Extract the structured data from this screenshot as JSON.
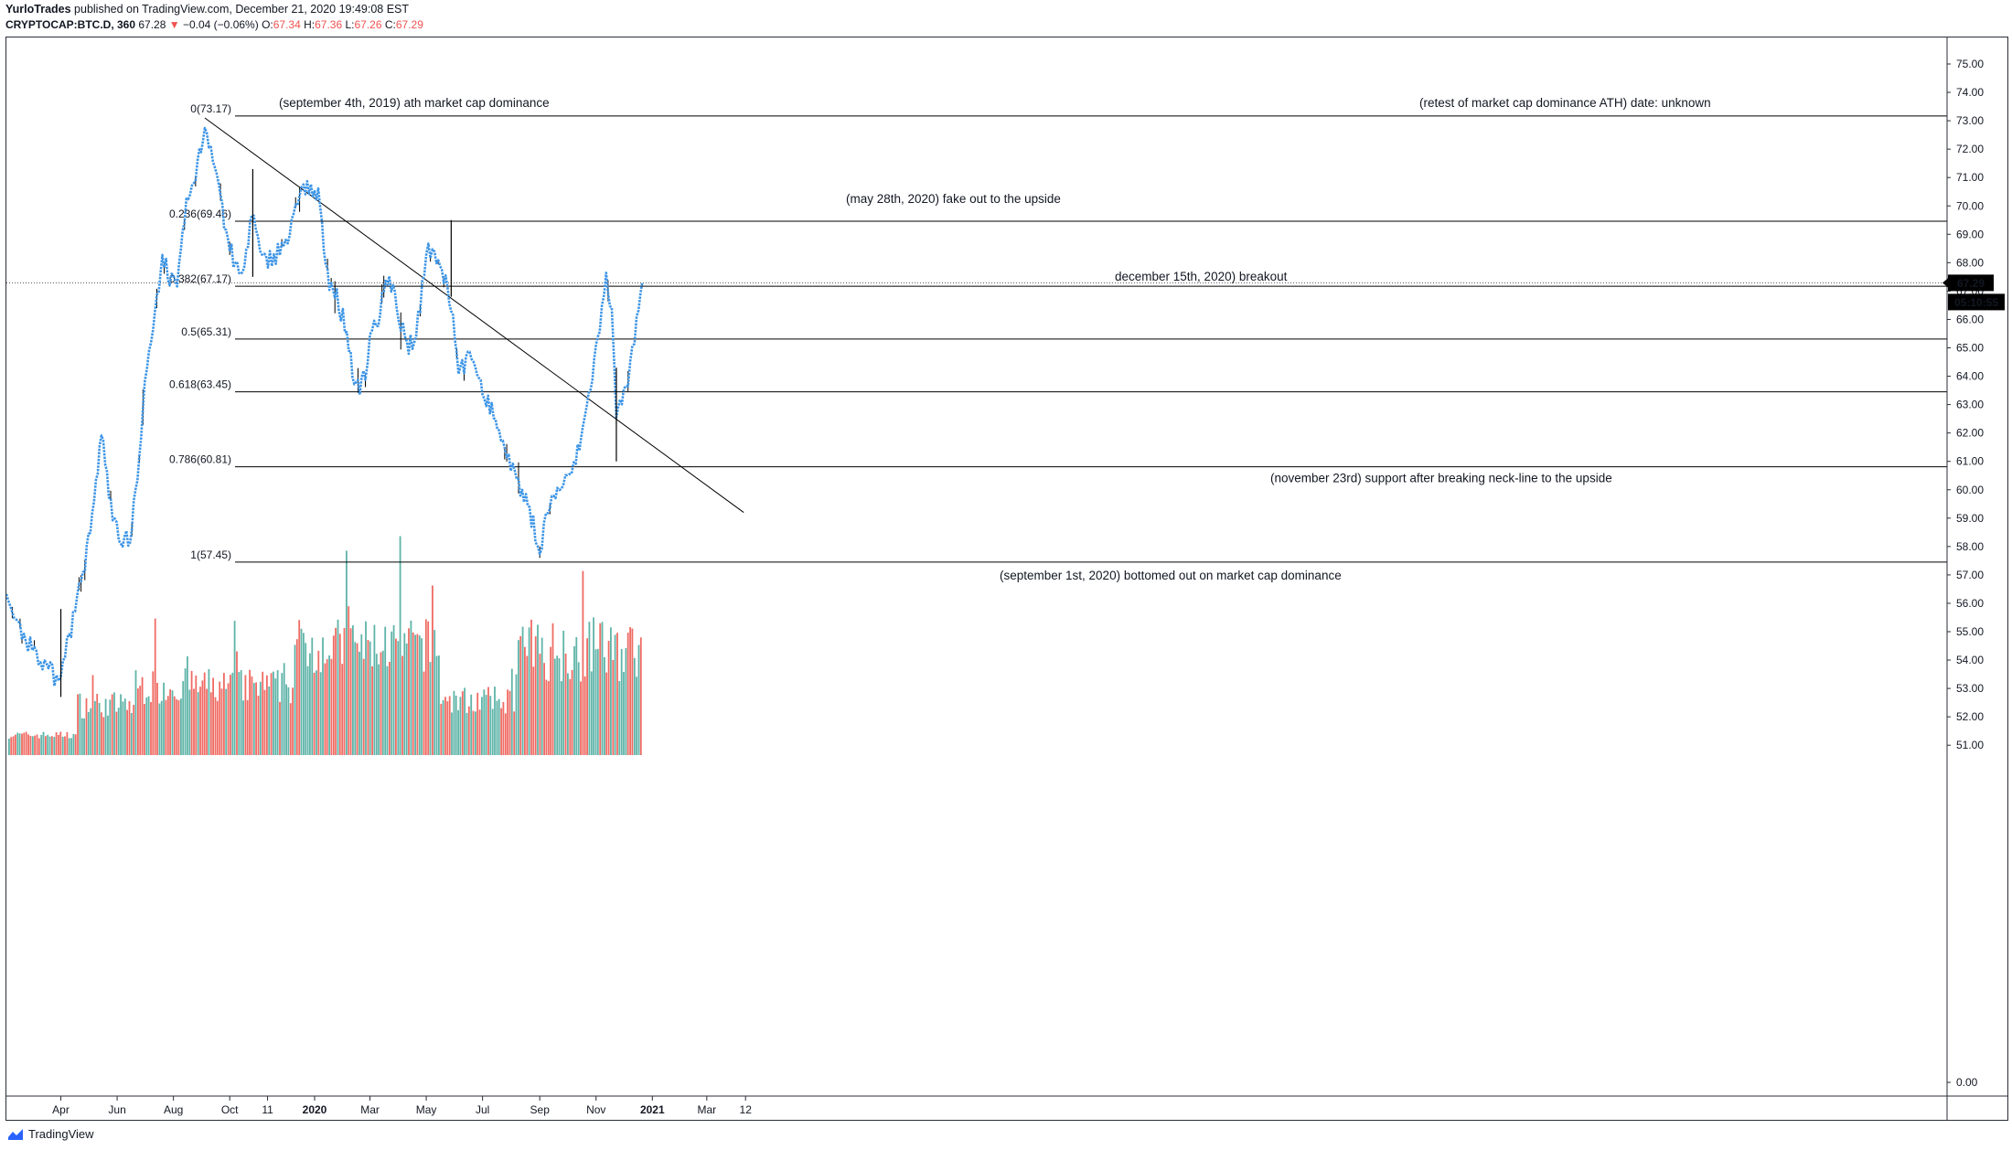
{
  "header": {
    "author": "YurloTrades",
    "published": "published on TradingView.com, December 21, 2020 19:49:08 EST",
    "symbol": "CRYPTOCAP:BTC.D, 360",
    "last": "67.28",
    "arrow": "▼",
    "change": "−0.04 (−0.06%)",
    "o_label": "O:",
    "o_value": "67.34",
    "h_label": "H:",
    "h_value": "67.36",
    "l_label": "L:",
    "l_value": "67.26",
    "c_label": "C:",
    "c_value": "67.29"
  },
  "footer": {
    "brand": "TradingView"
  },
  "price_badge": "67.29",
  "countdown_badge": "05:10:55",
  "colors": {
    "candle": "#3d95e6",
    "wick": "#000000",
    "vol_up": "#5fb4a8",
    "vol_down": "#ef6b64",
    "badge": "#000000",
    "line": "#000000"
  },
  "annotations": {
    "ath": "(september 4th, 2019) ath market cap dominance",
    "retest": "(retest of market cap dominance ATH) date: unknown",
    "fakeout": "(may 28th, 2020) fake out to the upside",
    "breakout": "december 15th, 2020) breakout",
    "support": "(november 23rd) support after breaking neck-line to the upside",
    "bottom": "(september 1st, 2020) bottomed out on market cap dominance"
  },
  "chart_data": {
    "type": "line",
    "title": "",
    "xlabel": "",
    "ylabel": "",
    "ylim": [
      0,
      75.5
    ],
    "y_axis_scale": "broken: 51.00 down to 0.00 compressed at bottom",
    "y_ticks": [
      "75.00",
      "74.00",
      "73.00",
      "72.00",
      "71.00",
      "70.00",
      "69.00",
      "68.00",
      "67.00",
      "66.00",
      "65.00",
      "64.00",
      "63.00",
      "62.00",
      "61.00",
      "60.00",
      "59.00",
      "58.00",
      "57.00",
      "56.00",
      "55.00",
      "54.00",
      "53.00",
      "52.00",
      "51.00",
      "0.00"
    ],
    "x_ticks": [
      "Apr",
      "Jun",
      "Aug",
      "Oct",
      "11",
      "2020",
      "Mar",
      "May",
      "Jul",
      "Sep",
      "Nov",
      "2021",
      "Mar",
      "12"
    ],
    "fib_levels": [
      {
        "label": "0(73.17)",
        "value": 73.17
      },
      {
        "label": "0.236(69.46)",
        "value": 69.46
      },
      {
        "label": "0.382(67.17)",
        "value": 67.17
      },
      {
        "label": "0.5(65.31)",
        "value": 65.31
      },
      {
        "label": "0.618(63.45)",
        "value": 63.45
      },
      {
        "label": "0.786(60.81)",
        "value": 60.81
      },
      {
        "label": "1(57.45)",
        "value": 57.45
      }
    ],
    "trendline": {
      "from": [
        "2019-09-04",
        73.1
      ],
      "to": [
        "2021-04-10",
        59.2
      ]
    },
    "current_price": 67.29,
    "series": [
      {
        "name": "CRYPTOCAP:BTC.D",
        "x": [
          "2019-02-01",
          "2019-02-20",
          "2019-03-10",
          "2019-03-25",
          "2019-04-01",
          "2019-04-10",
          "2019-04-25",
          "2019-05-05",
          "2019-05-15",
          "2019-05-25",
          "2019-06-05",
          "2019-06-15",
          "2019-06-25",
          "2019-07-01",
          "2019-07-10",
          "2019-07-20",
          "2019-07-28",
          "2019-08-05",
          "2019-08-15",
          "2019-08-25",
          "2019-09-04",
          "2019-09-15",
          "2019-09-25",
          "2019-10-05",
          "2019-10-15",
          "2019-10-25",
          "2019-11-05",
          "2019-11-20",
          "2019-12-05",
          "2019-12-20",
          "2019-12-30",
          "2020-01-05",
          "2020-01-15",
          "2020-01-25",
          "2020-02-05",
          "2020-02-15",
          "2020-02-25",
          "2020-03-01",
          "2020-03-10",
          "2020-03-20",
          "2020-03-30",
          "2020-04-10",
          "2020-04-20",
          "2020-05-01",
          "2020-05-10",
          "2020-05-20",
          "2020-05-28",
          "2020-06-05",
          "2020-06-15",
          "2020-06-25",
          "2020-07-05",
          "2020-07-15",
          "2020-07-25",
          "2020-08-05",
          "2020-08-15",
          "2020-08-25",
          "2020-09-01",
          "2020-09-10",
          "2020-09-20",
          "2020-10-01",
          "2020-10-10",
          "2020-10-20",
          "2020-10-30",
          "2020-11-05",
          "2020-11-12",
          "2020-11-18",
          "2020-11-23",
          "2020-12-01",
          "2020-12-08",
          "2020-12-15",
          "2020-12-21"
        ],
        "values": [
          56.0,
          54.8,
          54.1,
          53.4,
          53.6,
          54.8,
          57.0,
          59.0,
          62.0,
          59.5,
          58.3,
          58.2,
          61.0,
          63.8,
          65.5,
          68.3,
          67.5,
          67.0,
          70.0,
          71.0,
          72.8,
          71.6,
          69.5,
          68.0,
          67.5,
          69.8,
          68.0,
          68.3,
          69.0,
          70.7,
          70.5,
          70.3,
          67.5,
          66.8,
          65.5,
          63.5,
          64.0,
          65.5,
          66.0,
          67.5,
          66.5,
          65.0,
          65.3,
          68.5,
          68.3,
          67.5,
          66.5,
          64.2,
          64.6,
          64.3,
          63.2,
          62.5,
          61.5,
          60.5,
          59.7,
          58.8,
          57.9,
          59.3,
          60.0,
          60.3,
          61.0,
          62.5,
          64.5,
          65.8,
          67.4,
          66.2,
          62.5,
          63.3,
          64.2,
          66.0,
          67.29
        ]
      }
    ],
    "volume_note": "volume histogram bars, relative height only"
  }
}
